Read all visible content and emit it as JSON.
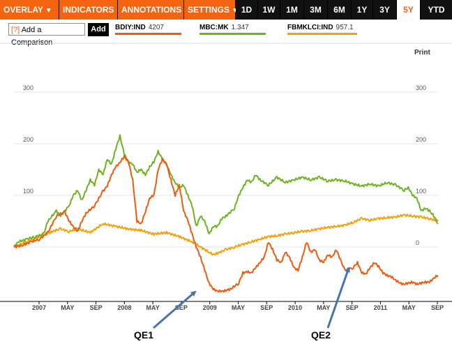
{
  "toolbar": {
    "menus": [
      {
        "label": "OVERLAY"
      },
      {
        "label": "INDICATORS"
      },
      {
        "label": "ANNOTATIONS"
      },
      {
        "label": "SETTINGS"
      }
    ],
    "ranges": [
      "1D",
      "1W",
      "1M",
      "3M",
      "6M",
      "1Y",
      "3Y",
      "5Y",
      "YTD"
    ],
    "active_range": "5Y"
  },
  "comparison": {
    "prefix": "[?]",
    "placeholder": "Add a Comparison",
    "add_label": "Add"
  },
  "legend": [
    {
      "symbol": "BDIY:IND",
      "value": "4207",
      "color": "#f05a0f"
    },
    {
      "symbol": "MBC:MK",
      "value": "1.347",
      "color": "#6cb41e"
    },
    {
      "symbol": "FBMKLCI:IND",
      "value": "957.1",
      "color": "#f5a00a"
    }
  ],
  "print_label": "Print",
  "chart_data": {
    "type": "line",
    "y_unit": "percent change",
    "ylim": [
      -100,
      300
    ],
    "y_ticks": [
      0,
      100,
      200,
      300
    ],
    "x_labels": [
      "2007",
      "MAY",
      "SEP",
      "2008",
      "MAY",
      "SEP",
      "2009",
      "MAY",
      "SEP",
      "2010",
      "MAY",
      "SEP",
      "2011",
      "MAY",
      "SEP"
    ],
    "grid": "horizontal",
    "series": [
      {
        "name": "BDIY:IND",
        "color": "#f05a0f",
        "points": [
          [
            0,
            0
          ],
          [
            2,
            3
          ],
          [
            4,
            10
          ],
          [
            6,
            15
          ],
          [
            8,
            28
          ],
          [
            10,
            60
          ],
          [
            12,
            68
          ],
          [
            13,
            50
          ],
          [
            14,
            40
          ],
          [
            15,
            30
          ],
          [
            16,
            50
          ],
          [
            17,
            65
          ],
          [
            19,
            80
          ],
          [
            21,
            108
          ],
          [
            22,
            118
          ],
          [
            23,
            140
          ],
          [
            24,
            155
          ],
          [
            25,
            164
          ],
          [
            26,
            175
          ],
          [
            27,
            165
          ],
          [
            28,
            130
          ],
          [
            29,
            50
          ],
          [
            30,
            45
          ],
          [
            31,
            68
          ],
          [
            32,
            95
          ],
          [
            33,
            100
          ],
          [
            34,
            150
          ],
          [
            35,
            170
          ],
          [
            36,
            160
          ],
          [
            37,
            130
          ],
          [
            38,
            100
          ],
          [
            39,
            120
          ],
          [
            40,
            70
          ],
          [
            41,
            52
          ],
          [
            42,
            25
          ],
          [
            43,
            0
          ],
          [
            44,
            -20
          ],
          [
            45,
            -45
          ],
          [
            46,
            -70
          ],
          [
            47,
            -82
          ],
          [
            48,
            -85
          ],
          [
            49,
            -86
          ],
          [
            50,
            -84
          ],
          [
            51,
            -82
          ],
          [
            53,
            -70
          ],
          [
            54,
            -50
          ],
          [
            55,
            -48
          ],
          [
            56,
            -50
          ],
          [
            57,
            -40
          ],
          [
            58,
            -30
          ],
          [
            59,
            -20
          ],
          [
            60,
            10
          ],
          [
            61,
            -5
          ],
          [
            62,
            -25
          ],
          [
            63,
            -30
          ],
          [
            64,
            -10
          ],
          [
            65,
            -20
          ],
          [
            66,
            -40
          ],
          [
            67,
            -45
          ],
          [
            68,
            -20
          ],
          [
            69,
            10
          ],
          [
            70,
            -10
          ],
          [
            71,
            -5
          ],
          [
            72,
            -25
          ],
          [
            73,
            -30
          ],
          [
            74,
            -15
          ],
          [
            75,
            -20
          ],
          [
            76,
            -5
          ],
          [
            78,
            -45
          ],
          [
            80,
            -40
          ],
          [
            81,
            -30
          ],
          [
            82,
            -50
          ],
          [
            83,
            -52
          ],
          [
            84,
            -40
          ],
          [
            85,
            -30
          ],
          [
            86,
            -38
          ],
          [
            87,
            -50
          ],
          [
            88,
            -55
          ],
          [
            89,
            -58
          ],
          [
            90,
            -64
          ],
          [
            91,
            -70
          ],
          [
            92,
            -72
          ],
          [
            93,
            -70
          ],
          [
            94,
            -68
          ],
          [
            95,
            -72
          ],
          [
            96,
            -70
          ],
          [
            97,
            -68
          ],
          [
            98,
            -68
          ],
          [
            99,
            -60
          ],
          [
            100,
            -55
          ]
        ]
      },
      {
        "name": "MBC:MK",
        "color": "#6cb41e",
        "points": [
          [
            0,
            0
          ],
          [
            1,
            10
          ],
          [
            3,
            15
          ],
          [
            5,
            20
          ],
          [
            7,
            25
          ],
          [
            8,
            50
          ],
          [
            10,
            70
          ],
          [
            11,
            60
          ],
          [
            13,
            80
          ],
          [
            14,
            100
          ],
          [
            15,
            110
          ],
          [
            16,
            90
          ],
          [
            17,
            110
          ],
          [
            18,
            130
          ],
          [
            19,
            120
          ],
          [
            20,
            150
          ],
          [
            21,
            140
          ],
          [
            22,
            170
          ],
          [
            23,
            160
          ],
          [
            24,
            190
          ],
          [
            25,
            215
          ],
          [
            26,
            180
          ],
          [
            27,
            165
          ],
          [
            28,
            160
          ],
          [
            29,
            145
          ],
          [
            30,
            150
          ],
          [
            31,
            140
          ],
          [
            32,
            155
          ],
          [
            33,
            165
          ],
          [
            34,
            185
          ],
          [
            35,
            170
          ],
          [
            36,
            160
          ],
          [
            37,
            140
          ],
          [
            38,
            125
          ],
          [
            39,
            115
          ],
          [
            40,
            120
          ],
          [
            41,
            100
          ],
          [
            42,
            80
          ],
          [
            43,
            40
          ],
          [
            44,
            60
          ],
          [
            45,
            50
          ],
          [
            46,
            25
          ],
          [
            47,
            40
          ],
          [
            48,
            40
          ],
          [
            49,
            55
          ],
          [
            50,
            60
          ],
          [
            52,
            75
          ],
          [
            53,
            100
          ],
          [
            54,
            115
          ],
          [
            55,
            130
          ],
          [
            56,
            125
          ],
          [
            57,
            140
          ],
          [
            58,
            130
          ],
          [
            60,
            120
          ],
          [
            62,
            135
          ],
          [
            64,
            125
          ],
          [
            66,
            130
          ],
          [
            68,
            135
          ],
          [
            70,
            130
          ],
          [
            72,
            135
          ],
          [
            74,
            128
          ],
          [
            76,
            130
          ],
          [
            78,
            128
          ],
          [
            80,
            122
          ],
          [
            82,
            118
          ],
          [
            84,
            122
          ],
          [
            86,
            118
          ],
          [
            88,
            125
          ],
          [
            90,
            120
          ],
          [
            92,
            110
          ],
          [
            93,
            115
          ],
          [
            94,
            100
          ],
          [
            95,
            95
          ],
          [
            96,
            70
          ],
          [
            97,
            75
          ],
          [
            98,
            70
          ],
          [
            99,
            60
          ],
          [
            100,
            45
          ]
        ]
      },
      {
        "name": "FBMKLCI:IND",
        "color": "#f5a00a",
        "points": [
          [
            0,
            0
          ],
          [
            3,
            10
          ],
          [
            6,
            20
          ],
          [
            9,
            30
          ],
          [
            11,
            35
          ],
          [
            13,
            30
          ],
          [
            15,
            35
          ],
          [
            18,
            28
          ],
          [
            21,
            45
          ],
          [
            24,
            40
          ],
          [
            27,
            35
          ],
          [
            30,
            32
          ],
          [
            33,
            25
          ],
          [
            36,
            28
          ],
          [
            39,
            20
          ],
          [
            42,
            10
          ],
          [
            44,
            0
          ],
          [
            46,
            -10
          ],
          [
            47,
            -15
          ],
          [
            48,
            -12
          ],
          [
            50,
            -5
          ],
          [
            52,
            0
          ],
          [
            54,
            5
          ],
          [
            56,
            10
          ],
          [
            58,
            15
          ],
          [
            60,
            20
          ],
          [
            62,
            22
          ],
          [
            64,
            25
          ],
          [
            66,
            28
          ],
          [
            68,
            30
          ],
          [
            70,
            32
          ],
          [
            72,
            35
          ],
          [
            74,
            38
          ],
          [
            76,
            40
          ],
          [
            78,
            42
          ],
          [
            80,
            48
          ],
          [
            82,
            55
          ],
          [
            84,
            52
          ],
          [
            86,
            55
          ],
          [
            88,
            57
          ],
          [
            90,
            58
          ],
          [
            92,
            62
          ],
          [
            94,
            60
          ],
          [
            96,
            58
          ],
          [
            98,
            55
          ],
          [
            100,
            50
          ]
        ]
      }
    ],
    "annotations": [
      {
        "text": "QE1",
        "points_to_x": 45
      },
      {
        "text": "QE2",
        "points_to_x": 79
      }
    ]
  }
}
